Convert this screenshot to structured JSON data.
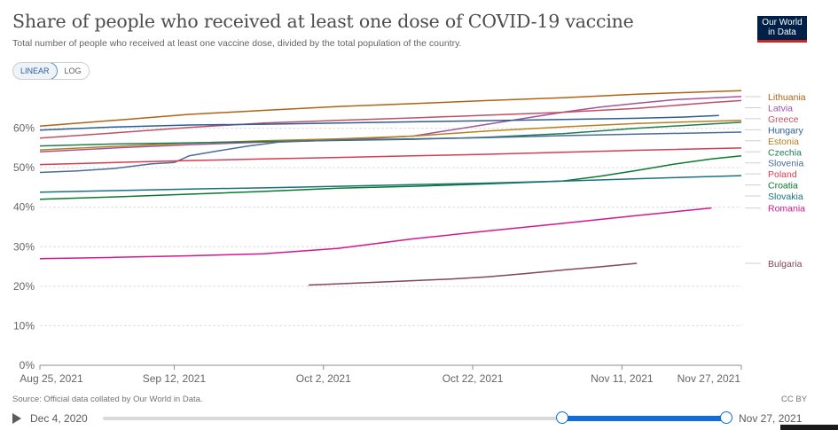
{
  "header": {
    "title": "Share of people who received at least one dose of COVID-19 vaccine",
    "subtitle": "Total number of people who received at least one vaccine dose, divided by the total population of the country.",
    "logo_line1": "Our World",
    "logo_line2": "in Data"
  },
  "controls": {
    "linear_label": "LINEAR",
    "log_label": "LOG"
  },
  "footer": {
    "source": "Source: Official data collated by Our World in Data.",
    "license": "CC BY"
  },
  "timeline": {
    "start_label": "Dec 4, 2020",
    "end_label": "Nov 27, 2021"
  },
  "chart_data": {
    "type": "line",
    "title": "Share of people who received at least one dose of COVID-19 vaccine",
    "x_tick_labels": [
      "Aug 25, 2021",
      "Sep 12, 2021",
      "Oct 2, 2021",
      "Oct 22, 2021",
      "Nov 11, 2021",
      "Nov 27, 2021"
    ],
    "x_tick_days": [
      0,
      18,
      38,
      58,
      78,
      94
    ],
    "xlim": [
      0,
      94
    ],
    "y_ticks": [
      0,
      10,
      20,
      30,
      40,
      50,
      60
    ],
    "y_tick_labels": [
      "0%",
      "10%",
      "20%",
      "30%",
      "40%",
      "50%",
      "60%"
    ],
    "ylim": [
      0,
      70
    ],
    "grid": true,
    "legend": "right, labels at line ends",
    "series": [
      {
        "name": "Lithuania",
        "color": "#b16214",
        "points": [
          [
            0,
            60.5
          ],
          [
            10,
            62
          ],
          [
            20,
            63.5
          ],
          [
            30,
            64.5
          ],
          [
            40,
            65.5
          ],
          [
            50,
            66.2
          ],
          [
            60,
            67
          ],
          [
            70,
            67.7
          ],
          [
            80,
            68.6
          ],
          [
            94,
            69.5
          ]
        ]
      },
      {
        "name": "Latvia",
        "color": "#a2559c",
        "points": [
          [
            0,
            54
          ],
          [
            10,
            55
          ],
          [
            20,
            55.8
          ],
          [
            30,
            56.5
          ],
          [
            40,
            57
          ],
          [
            50,
            58
          ],
          [
            55,
            59.5
          ],
          [
            60,
            61
          ],
          [
            65,
            62.5
          ],
          [
            70,
            64
          ],
          [
            75,
            65.3
          ],
          [
            80,
            66.3
          ],
          [
            85,
            67.2
          ],
          [
            94,
            68
          ]
        ]
      },
      {
        "name": "Greece",
        "color": "#c15065",
        "points": [
          [
            0,
            57.5
          ],
          [
            10,
            58.8
          ],
          [
            20,
            60.2
          ],
          [
            30,
            61.3
          ],
          [
            40,
            62
          ],
          [
            50,
            62.6
          ],
          [
            60,
            63.3
          ],
          [
            70,
            64
          ],
          [
            80,
            65
          ],
          [
            90,
            66.5
          ],
          [
            94,
            67
          ]
        ]
      },
      {
        "name": "Hungary",
        "color": "#2c5d97",
        "points": [
          [
            0,
            59.5
          ],
          [
            10,
            60.3
          ],
          [
            20,
            60.8
          ],
          [
            30,
            61
          ],
          [
            40,
            61.3
          ],
          [
            50,
            61.6
          ],
          [
            60,
            61.9
          ],
          [
            70,
            62.2
          ],
          [
            80,
            62.5
          ],
          [
            86,
            62.8
          ],
          [
            91,
            63.2
          ]
        ]
      },
      {
        "name": "Estonia",
        "color": "#b8801b",
        "points": [
          [
            0,
            54.5
          ],
          [
            10,
            55.4
          ],
          [
            20,
            56.2
          ],
          [
            30,
            56.8
          ],
          [
            40,
            57.3
          ],
          [
            50,
            58
          ],
          [
            60,
            59.3
          ],
          [
            70,
            60.3
          ],
          [
            80,
            61.2
          ],
          [
            94,
            62
          ]
        ]
      },
      {
        "name": "Czechia",
        "color": "#1c7e52",
        "points": [
          [
            0,
            55.5
          ],
          [
            10,
            56
          ],
          [
            20,
            56.3
          ],
          [
            30,
            56.6
          ],
          [
            40,
            56.9
          ],
          [
            50,
            57.2
          ],
          [
            60,
            57.7
          ],
          [
            70,
            58.6
          ],
          [
            80,
            60
          ],
          [
            94,
            61.5
          ]
        ]
      },
      {
        "name": "Slovenia",
        "color": "#4c6a9c",
        "points": [
          [
            0,
            48.8
          ],
          [
            5,
            49.2
          ],
          [
            10,
            49.8
          ],
          [
            15,
            51
          ],
          [
            18,
            51.3
          ],
          [
            20,
            53
          ],
          [
            24,
            54.3
          ],
          [
            28,
            55.5
          ],
          [
            32,
            56.5
          ],
          [
            40,
            57
          ],
          [
            50,
            57.3
          ],
          [
            60,
            57.6
          ],
          [
            70,
            58.1
          ],
          [
            80,
            58.5
          ],
          [
            94,
            59
          ]
        ]
      },
      {
        "name": "Poland",
        "color": "#d73c50",
        "points": [
          [
            0,
            50.8
          ],
          [
            10,
            51.3
          ],
          [
            20,
            51.8
          ],
          [
            30,
            52.2
          ],
          [
            40,
            52.6
          ],
          [
            50,
            53
          ],
          [
            60,
            53.4
          ],
          [
            70,
            53.9
          ],
          [
            80,
            54.4
          ],
          [
            94,
            55
          ]
        ]
      },
      {
        "name": "Croatia",
        "color": "#0a7a2d",
        "points": [
          [
            0,
            42
          ],
          [
            10,
            42.6
          ],
          [
            20,
            43.3
          ],
          [
            30,
            44
          ],
          [
            40,
            44.8
          ],
          [
            50,
            45.3
          ],
          [
            60,
            45.9
          ],
          [
            70,
            46.6
          ],
          [
            75,
            47.8
          ],
          [
            80,
            49.3
          ],
          [
            85,
            50.9
          ],
          [
            90,
            52.2
          ],
          [
            94,
            53
          ]
        ]
      },
      {
        "name": "Slovakia",
        "color": "#18727b",
        "points": [
          [
            0,
            43.8
          ],
          [
            10,
            44.2
          ],
          [
            20,
            44.6
          ],
          [
            30,
            44.9
          ],
          [
            40,
            45.3
          ],
          [
            50,
            45.7
          ],
          [
            60,
            46.1
          ],
          [
            70,
            46.6
          ],
          [
            80,
            47.2
          ],
          [
            94,
            48
          ]
        ]
      },
      {
        "name": "Romania",
        "color": "#d2188d",
        "points": [
          [
            0,
            27
          ],
          [
            10,
            27.3
          ],
          [
            20,
            27.7
          ],
          [
            30,
            28.2
          ],
          [
            40,
            29.6
          ],
          [
            50,
            32
          ],
          [
            60,
            34
          ],
          [
            70,
            35.9
          ],
          [
            80,
            37.9
          ],
          [
            90,
            39.8
          ]
        ]
      },
      {
        "name": "Bulgaria",
        "color": "#84445d",
        "points": [
          [
            36,
            20.3
          ],
          [
            45,
            21
          ],
          [
            55,
            21.8
          ],
          [
            60,
            22.4
          ],
          [
            65,
            23.2
          ],
          [
            70,
            24.1
          ],
          [
            75,
            24.9
          ],
          [
            80,
            25.8
          ]
        ]
      }
    ],
    "legend_labels": [
      "Lithuania",
      "Latvia",
      "Greece",
      "Hungary",
      "Estonia",
      "Czechia",
      "Slovenia",
      "Poland",
      "Croatia",
      "Slovakia",
      "Romania",
      "Bulgaria"
    ]
  }
}
